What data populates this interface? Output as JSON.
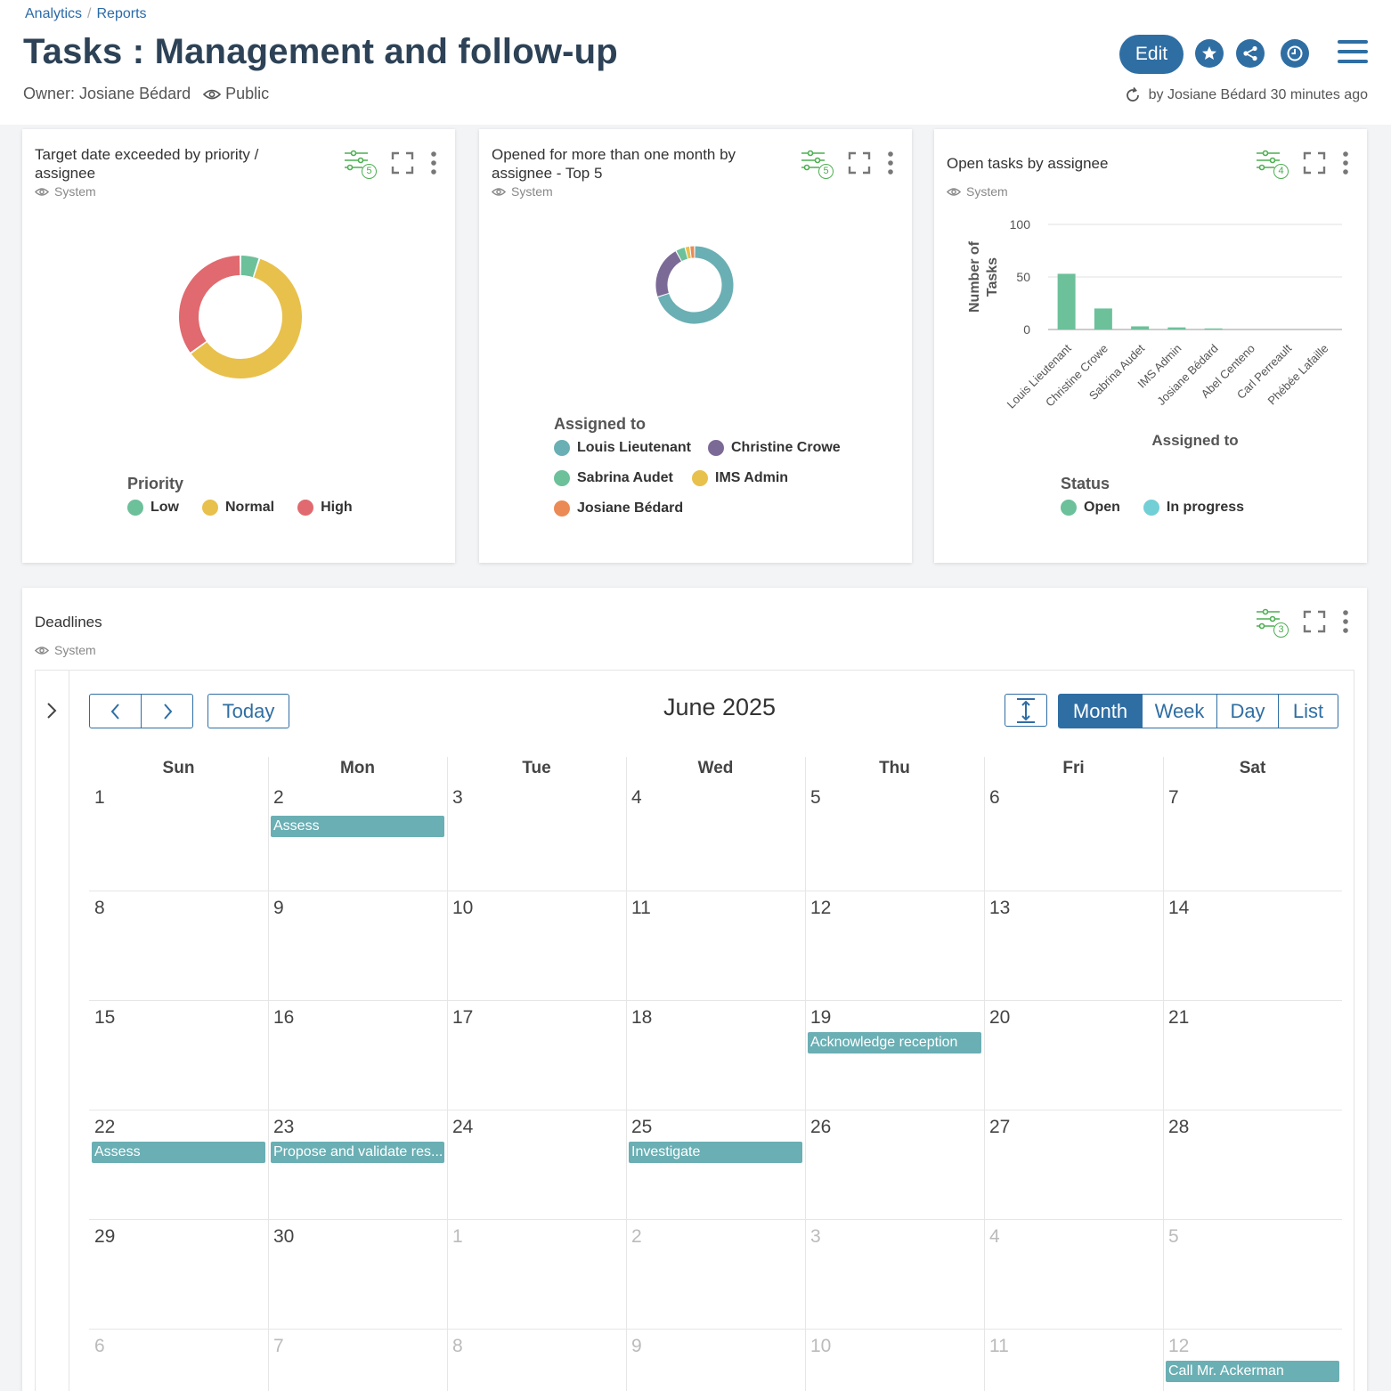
{
  "breadcrumb": {
    "items": [
      "Analytics",
      "Reports"
    ]
  },
  "page": {
    "title": "Tasks : Management and follow-up",
    "owner_label": "Owner:",
    "owner_name": "Josiane Bédard",
    "visibility": "Public",
    "edit_label": "Edit",
    "modified_text": "by Josiane Bédard 30 minutes ago"
  },
  "colors": {
    "accent": "#2f6ea3",
    "green": "#6cc09a",
    "yellow": "#e8c04c",
    "red": "#e06a6f",
    "teal": "#6aafb4",
    "purple": "#7b6a96",
    "orange": "#eb8a54",
    "cyan": "#73cfd6"
  },
  "widgets": [
    {
      "title": "Target date exceeded by priority / assignee",
      "system": "System",
      "filter_count": "5",
      "legend_title": "Priority",
      "legend": [
        {
          "label": "Low",
          "color": "#6cc09a"
        },
        {
          "label": "Normal",
          "color": "#e8c04c"
        },
        {
          "label": "High",
          "color": "#e06a6f"
        }
      ],
      "chart_data": {
        "type": "pie",
        "categories": [
          "Low",
          "Normal",
          "High"
        ],
        "values": [
          5,
          60,
          35
        ],
        "title": "Target date exceeded by priority / assignee"
      }
    },
    {
      "title": "Opened for more than one month by assignee - Top 5",
      "system": "System",
      "filter_count": "5",
      "legend_title": "Assigned to",
      "legend": [
        {
          "label": "Louis Lieutenant",
          "color": "#6aafb4"
        },
        {
          "label": "Christine Crowe",
          "color": "#7b6a96"
        },
        {
          "label": "Sabrina Audet",
          "color": "#6cc09a"
        },
        {
          "label": "IMS Admin",
          "color": "#e8c04c"
        },
        {
          "label": "Josiane Bédard",
          "color": "#eb8a54"
        }
      ],
      "chart_data": {
        "type": "pie",
        "categories": [
          "Louis Lieutenant",
          "Christine Crowe",
          "Sabrina Audet",
          "IMS Admin",
          "Josiane Bédard"
        ],
        "values": [
          70,
          22,
          4,
          2,
          2
        ],
        "title": "Opened for more than one month by assignee - Top 5"
      }
    },
    {
      "title": "Open tasks by assignee",
      "system": "System",
      "filter_count": "4",
      "legend_title": "Status",
      "legend": [
        {
          "label": "Open",
          "color": "#6cc09a"
        },
        {
          "label": "In progress",
          "color": "#73cfd6"
        }
      ],
      "chart_data": {
        "type": "bar",
        "title": "Open tasks by assignee",
        "xlabel": "Assigned to",
        "ylabel": "Number of Tasks",
        "ylim": [
          0,
          100
        ],
        "yticks": [
          "100",
          "50",
          "0"
        ],
        "categories": [
          "Louis Lieutenant",
          "Christine Crowe",
          "Sabrina Audet",
          "IMS Admin",
          "Josiane Bédard",
          "Abel Centeno",
          "Carl Perreault",
          "Phébée Lafaille"
        ],
        "series": [
          {
            "name": "Open",
            "values": [
              53,
              20,
              3,
              2,
              1,
              0,
              0,
              0
            ]
          },
          {
            "name": "In progress",
            "values": [
              0,
              0,
              0,
              0,
              0,
              0,
              0,
              0
            ]
          }
        ]
      }
    }
  ],
  "deadlines": {
    "title": "Deadlines",
    "system": "System",
    "filter_count": "3",
    "month_label": "June 2025",
    "today_label": "Today",
    "views": [
      "Month",
      "Week",
      "Day",
      "List"
    ],
    "weekdays": [
      "Sun",
      "Mon",
      "Tue",
      "Wed",
      "Thu",
      "Fri",
      "Sat"
    ],
    "weeks": [
      [
        [
          "1",
          0
        ],
        [
          "2",
          0
        ],
        [
          "3",
          0
        ],
        [
          "4",
          0
        ],
        [
          "5",
          0
        ],
        [
          "6",
          0
        ],
        [
          "7",
          0
        ]
      ],
      [
        [
          "8",
          0
        ],
        [
          "9",
          0
        ],
        [
          "10",
          0
        ],
        [
          "11",
          0
        ],
        [
          "12",
          0
        ],
        [
          "13",
          0
        ],
        [
          "14",
          0
        ]
      ],
      [
        [
          "15",
          0
        ],
        [
          "16",
          0
        ],
        [
          "17",
          0
        ],
        [
          "18",
          0
        ],
        [
          "19",
          0
        ],
        [
          "20",
          0
        ],
        [
          "21",
          0
        ]
      ],
      [
        [
          "22",
          0
        ],
        [
          "23",
          0
        ],
        [
          "24",
          0
        ],
        [
          "25",
          0
        ],
        [
          "26",
          0
        ],
        [
          "27",
          0
        ],
        [
          "28",
          0
        ]
      ],
      [
        [
          "29",
          0
        ],
        [
          "30",
          0
        ],
        [
          "1",
          1
        ],
        [
          "2",
          1
        ],
        [
          "3",
          1
        ],
        [
          "4",
          1
        ],
        [
          "5",
          1
        ]
      ],
      [
        [
          "6",
          1
        ],
        [
          "7",
          1
        ],
        [
          "8",
          1
        ],
        [
          "9",
          1
        ],
        [
          "10",
          1
        ],
        [
          "11",
          1
        ],
        [
          "12",
          1
        ]
      ]
    ],
    "events": [
      {
        "week": 0,
        "day": 1,
        "label": "Assess"
      },
      {
        "week": 2,
        "day": 4,
        "label": "Acknowledge reception"
      },
      {
        "week": 3,
        "day": 0,
        "label": "Assess"
      },
      {
        "week": 3,
        "day": 1,
        "label": "Propose and validate res..."
      },
      {
        "week": 3,
        "day": 3,
        "label": "Investigate"
      },
      {
        "week": 5,
        "day": 6,
        "label": "Call Mr. Ackerman"
      }
    ]
  }
}
